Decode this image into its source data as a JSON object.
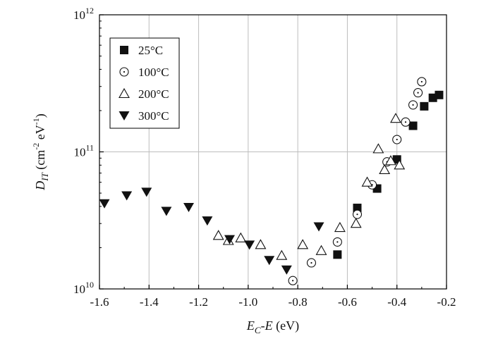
{
  "chart_data": {
    "type": "scatter",
    "title": "",
    "xlabel": {
      "main": "E",
      "sub": "C",
      "rest": "-E (eV)",
      "italic_prefix": "E",
      "italic_after_sub": "-",
      "italic_letter": "E",
      "unit": " (eV)"
    },
    "ylabel": {
      "main": "D",
      "sub": "IT",
      "rest": " (cm",
      "exp1": "-2",
      "mid": " eV",
      "exp2": "-1",
      "end": ")"
    },
    "xlim": [
      -1.6,
      -0.2
    ],
    "ylim": [
      10000000000,
      1000000000000
    ],
    "yscale": "log",
    "grid": true,
    "x_ticks": [
      -1.6,
      -1.4,
      -1.2,
      -1.0,
      -0.8,
      -0.6,
      -0.4,
      -0.2
    ],
    "x_tick_labels": [
      "-1.6",
      "-1.4",
      "-1.2",
      "-1.0",
      "-0.8",
      "-0.6",
      "-0.4",
      "-0.2"
    ],
    "y_ticks": [
      10000000000,
      100000000000,
      1000000000000
    ],
    "y_tick_labels": [
      {
        "base": "10",
        "exp": "10"
      },
      {
        "base": "10",
        "exp": "11"
      },
      {
        "base": "10",
        "exp": "12"
      }
    ],
    "legend_position": "top-left",
    "series": [
      {
        "name": "25°C",
        "marker": "filled-square",
        "points": [
          [
            -0.64,
            17800000000.0
          ],
          [
            -0.56,
            39000000000.0
          ],
          [
            -0.48,
            54000000000.0
          ],
          [
            -0.4,
            88000000000.0
          ],
          [
            -0.335,
            155000000000.0
          ],
          [
            -0.29,
            215000000000.0
          ],
          [
            -0.255,
            248000000000.0
          ],
          [
            -0.23,
            260000000000.0
          ]
        ]
      },
      {
        "name": "100°C",
        "marker": "open-circle",
        "points": [
          [
            -0.82,
            11500000000.0
          ],
          [
            -0.745,
            15500000000.0
          ],
          [
            -0.64,
            22000000000.0
          ],
          [
            -0.56,
            35000000000.0
          ],
          [
            -0.5,
            57500000000.0
          ],
          [
            -0.44,
            84500000000.0
          ],
          [
            -0.4,
            123000000000.0
          ],
          [
            -0.365,
            165000000000.0
          ],
          [
            -0.335,
            220000000000.0
          ],
          [
            -0.315,
            270000000000.0
          ],
          [
            -0.3,
            325000000000.0
          ]
        ]
      },
      {
        "name": "200°C",
        "marker": "open-triangle-up",
        "points": [
          [
            -1.12,
            24500000000.0
          ],
          [
            -1.08,
            22500000000.0
          ],
          [
            -1.03,
            23500000000.0
          ],
          [
            -0.95,
            21000000000.0
          ],
          [
            -0.865,
            17500000000.0
          ],
          [
            -0.78,
            21000000000.0
          ],
          [
            -0.705,
            19000000000.0
          ],
          [
            -0.63,
            28000000000.0
          ],
          [
            -0.565,
            30000000000.0
          ],
          [
            -0.52,
            60000000000.0
          ],
          [
            -0.475,
            105000000000.0
          ],
          [
            -0.45,
            74000000000.0
          ],
          [
            -0.425,
            86000000000.0
          ],
          [
            -0.405,
            175000000000.0
          ],
          [
            -0.39,
            80000000000.0
          ]
        ]
      },
      {
        "name": "300°C",
        "marker": "filled-triangle-down",
        "points": [
          [
            -1.58,
            42000000000.0
          ],
          [
            -1.49,
            48000000000.0
          ],
          [
            -1.41,
            51000000000.0
          ],
          [
            -1.33,
            37000000000.0
          ],
          [
            -1.24,
            39500000000.0
          ],
          [
            -1.165,
            31500000000.0
          ],
          [
            -1.075,
            23000000000.0
          ],
          [
            -0.995,
            21000000000.0
          ],
          [
            -0.915,
            16200000000.0
          ],
          [
            -0.845,
            13800000000.0
          ],
          [
            -0.715,
            28500000000.0
          ]
        ]
      }
    ]
  }
}
